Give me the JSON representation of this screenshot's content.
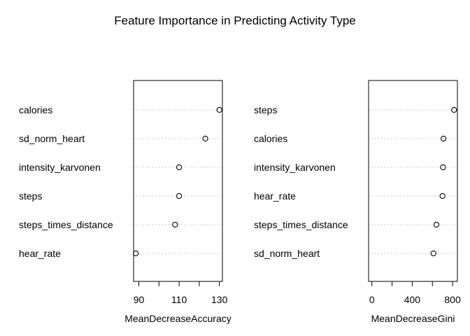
{
  "title": "Feature Importance in Predicting Activity Type",
  "colors": {
    "frame": "#000000",
    "dotted_line": "#bebebe",
    "point": "#000000",
    "background": "#ffffff"
  },
  "chart_data": [
    {
      "type": "dotchart",
      "xlabel": "MeanDecreaseAccuracy",
      "categories": [
        "calories",
        "sd_norm_heart",
        "intensity_karvonen",
        "steps",
        "steps_times_distance",
        "hear_rate"
      ],
      "values": [
        130,
        123,
        110,
        110,
        108,
        88.5
      ],
      "ticks": [
        90,
        100,
        110,
        120,
        130
      ],
      "tick_labels": [
        "90",
        "",
        "110",
        "",
        "130"
      ],
      "xlim": [
        87.4,
        131.5
      ]
    },
    {
      "type": "dotchart",
      "xlabel": "MeanDecreaseGini",
      "categories": [
        "steps",
        "calories",
        "intensity_karvonen",
        "hear_rate",
        "steps_times_distance",
        "sd_norm_heart"
      ],
      "values": [
        815,
        710,
        705,
        700,
        640,
        610
      ],
      "ticks": [
        0,
        200,
        400,
        600,
        800
      ],
      "tick_labels": [
        "0",
        "",
        "400",
        "",
        "800"
      ],
      "xlim": [
        -33,
        848
      ]
    }
  ]
}
